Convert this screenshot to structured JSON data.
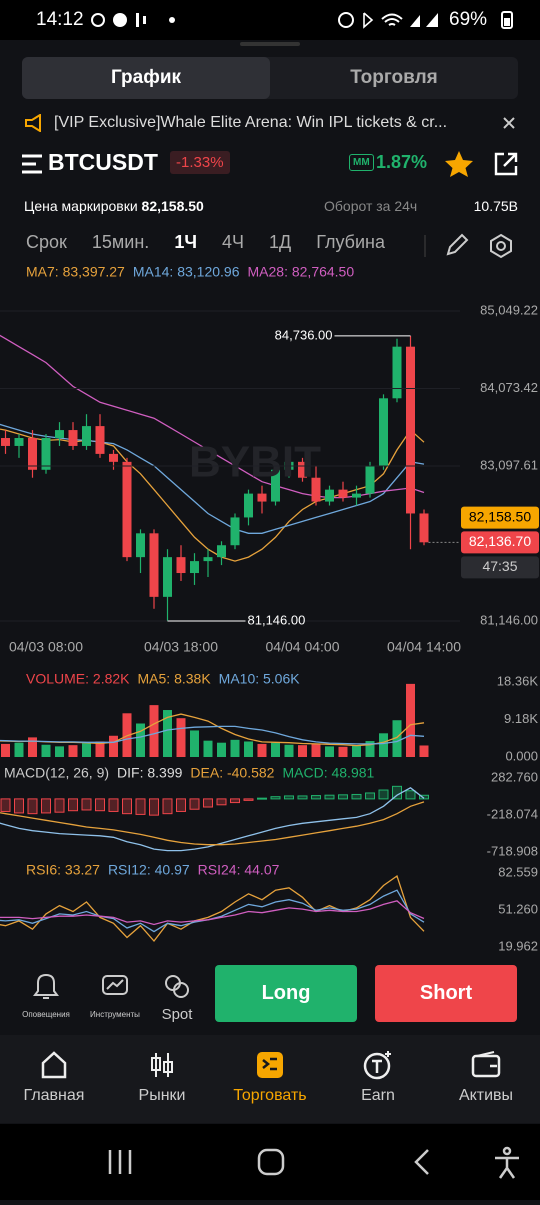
{
  "status_bar": {
    "time": "14:12",
    "battery": "69%"
  },
  "tabs": [
    "График",
    "Торговля"
  ],
  "active_tab": 0,
  "banner": "[VIP Exclusive]Whale Elite Arena: Win IPL tickets & cr...",
  "ticker": {
    "symbol": "BTCUSDT",
    "change": "-1.33%",
    "mm_badge": "MM",
    "mm_value": "1.87%",
    "mark_price_label": "Цена маркировки",
    "mark_price": "82,158.50",
    "turnover_label": "Оборот за 24ч",
    "turnover": "10.75B"
  },
  "intervals": [
    "Срок",
    "15мин.",
    "1Ч",
    "4Ч",
    "1Д",
    "Глубина"
  ],
  "active_interval": 2,
  "chart_data": [
    {
      "type": "candlestick",
      "watermark": "BYBIT",
      "grid": true,
      "ylim": [
        81146,
        85049.22
      ],
      "yticks": [
        {
          "value": 85049.22,
          "label": "85,049.22"
        },
        {
          "value": 84073.42,
          "label": "84,073.42"
        },
        {
          "value": 83097.61,
          "label": "83,097.61"
        },
        {
          "value": 81146,
          "label": "81,146.00"
        }
      ],
      "categories": [
        null,
        null,
        null,
        null,
        null,
        "04/03 08:00",
        null,
        null,
        null,
        null,
        null,
        null,
        null,
        null,
        null,
        "04/03 18:00",
        null,
        null,
        null,
        null,
        null,
        null,
        null,
        null,
        "04/04 04:00",
        null,
        null,
        null,
        null,
        null,
        null,
        null,
        null,
        "04/04 14:00"
      ],
      "open": [
        83600,
        83750,
        83450,
        83350,
        83450,
        83050,
        83450,
        83550,
        83350,
        83600,
        83250,
        83150,
        81950,
        82250,
        81450,
        81950,
        81750,
        81900,
        81950,
        82100,
        82450,
        82750,
        82650,
        83050,
        83150,
        82950,
        82650,
        82800,
        82700,
        82750,
        83100,
        83950,
        84600,
        82500
      ],
      "high": [
        83850,
        83850,
        83550,
        83500,
        83550,
        83500,
        83650,
        83650,
        83750,
        83750,
        83300,
        83200,
        82300,
        82300,
        82050,
        82100,
        82000,
        82050,
        82150,
        82500,
        82800,
        82850,
        83100,
        83250,
        83200,
        83100,
        82850,
        82900,
        82850,
        83150,
        84000,
        84700,
        84736,
        82550
      ],
      "low": [
        83450,
        83400,
        83250,
        83200,
        82950,
        83000,
        83350,
        83300,
        83300,
        83200,
        83050,
        81900,
        81750,
        81300,
        81146,
        81650,
        81600,
        81700,
        81850,
        82050,
        82350,
        82500,
        82600,
        82950,
        82900,
        82600,
        82600,
        82650,
        82600,
        82700,
        83050,
        83900,
        82050,
        82100
      ],
      "close": [
        83750,
        83450,
        83350,
        83450,
        83050,
        83450,
        83550,
        83350,
        83600,
        83250,
        83150,
        81950,
        82250,
        81450,
        81950,
        81750,
        81900,
        81950,
        82100,
        82450,
        82750,
        82650,
        83050,
        83150,
        82950,
        82650,
        82800,
        82700,
        82750,
        83100,
        83950,
        84600,
        82500,
        82136.7
      ],
      "up_color": "#20b26c",
      "down_color": "#ef454a",
      "series": [
        {
          "name": "MA7: 83,397.27",
          "color": "#e6a23c",
          "values": [
            83600,
            83580,
            83550,
            83500,
            83450,
            83420,
            83430,
            83400,
            83420,
            83400,
            83350,
            83150,
            83000,
            82800,
            82600,
            82400,
            82200,
            82050,
            81950,
            81900,
            81950,
            82050,
            82200,
            82400,
            82550,
            82650,
            82700,
            82750,
            82800,
            82850,
            83000,
            83300,
            83550,
            83397.27
          ]
        },
        {
          "name": "MA14: 83,120.96",
          "color": "#6fa8dc",
          "values": [
            83700,
            83650,
            83600,
            83550,
            83500,
            83470,
            83450,
            83430,
            83420,
            83400,
            83380,
            83300,
            83200,
            83100,
            82950,
            82800,
            82650,
            82500,
            82400,
            82300,
            82250,
            82250,
            82300,
            82350,
            82400,
            82450,
            82500,
            82550,
            82600,
            82650,
            82750,
            82950,
            83150,
            83120.96
          ]
        },
        {
          "name": "MA28: 82,764.50",
          "color": "#d05ec0",
          "values": [
            84900,
            84800,
            84700,
            84600,
            84500,
            84400,
            84250,
            84100,
            84000,
            83900,
            83850,
            83800,
            83750,
            83700,
            83600,
            83500,
            83400,
            83300,
            83200,
            83100,
            83000,
            82900,
            82850,
            82800,
            82750,
            82720,
            82700,
            82700,
            82720,
            82750,
            82780,
            82800,
            82820,
            82764.5
          ]
        }
      ],
      "annotations": [
        {
          "value": 84736,
          "label": "84,736.00"
        },
        {
          "value": 81146,
          "label": "81,146.00"
        }
      ],
      "price_tags": [
        {
          "value": 82158.5,
          "label": "82,158.50",
          "color": "#f7a600"
        },
        {
          "value": 82136.7,
          "label": "82,136.70",
          "color": "#ef454a"
        }
      ],
      "countdown": "47:35"
    },
    {
      "type": "bar",
      "ylim": [
        0,
        18.36
      ],
      "yticks": [
        {
          "value": 0,
          "label": "0.000"
        },
        {
          "value": 9.18,
          "label": "9.18K"
        },
        {
          "value": 18.36,
          "label": "18.36K"
        }
      ],
      "series": [
        {
          "name": "VOLUME: 2.82K",
          "color": "#ef454a",
          "values": [
            4.5,
            3.8,
            3.2,
            3.5,
            4.8,
            3.0,
            2.6,
            2.9,
            3.4,
            3.8,
            5.2,
            10.7,
            8.2,
            12.7,
            11.5,
            9.5,
            6.5,
            4.0,
            3.5,
            4.2,
            3.8,
            3.2,
            3.5,
            3.0,
            2.9,
            3.3,
            2.6,
            2.5,
            2.8,
            3.9,
            5.8,
            9.0,
            17.9,
            2.82
          ]
        },
        {
          "name": "MA5: 8.38K",
          "color": "#e6a23c",
          "values": [
            4,
            4,
            3.9,
            3.8,
            3.9,
            3.7,
            3.6,
            3.6,
            3.5,
            3.3,
            3.6,
            5.2,
            6.3,
            8.1,
            9.7,
            10.5,
            9.7,
            8.8,
            7.0,
            5.5,
            4.4,
            3.7,
            3.6,
            3.5,
            3.3,
            3.2,
            3.1,
            3.0,
            2.8,
            3.0,
            3.6,
            4.8,
            7.9,
            8.38
          ]
        },
        {
          "name": "MA10: 5.06K",
          "color": "#6fa8dc",
          "values": [
            4.2,
            4.1,
            4.0,
            3.9,
            3.9,
            3.8,
            3.7,
            3.7,
            3.6,
            3.6,
            3.6,
            4.4,
            4.9,
            5.7,
            6.6,
            7.0,
            7.3,
            7.4,
            7.5,
            7.5,
            7.0,
            6.6,
            5.9,
            5.0,
            4.2,
            3.7,
            3.4,
            3.3,
            3.2,
            3.2,
            3.3,
            3.8,
            5.3,
            5.06
          ]
        }
      ]
    },
    {
      "type": "macd",
      "title": "MACD(12, 26, 9)",
      "ylim": [
        -718.908,
        282.76
      ],
      "yticks": [
        {
          "value": 282.76,
          "label": "282.760"
        },
        {
          "value": -218.074,
          "label": "-218.074"
        },
        {
          "value": -718.908,
          "label": "-718.908"
        }
      ],
      "up_color": "#20b26c",
      "down_color": "#ef454a",
      "series": [
        {
          "name": "DIF: 8.399",
          "color": "#8fc1ea",
          "values": [
            -250,
            -300,
            -350,
            -400,
            -430,
            -450,
            -470,
            -480,
            -490,
            -500,
            -520,
            -580,
            -620,
            -680,
            -700,
            -700,
            -680,
            -650,
            -600,
            -550,
            -500,
            -450,
            -400,
            -360,
            -330,
            -310,
            -290,
            -270,
            -250,
            -200,
            -100,
            50,
            150,
            8.399
          ]
        },
        {
          "name": "DEA: -40.582",
          "color": "#e6a23c",
          "values": [
            -150,
            -170,
            -200,
            -230,
            -260,
            -290,
            -320,
            -350,
            -380,
            -400,
            -420,
            -450,
            -480,
            -520,
            -560,
            -590,
            -610,
            -620,
            -620,
            -610,
            -590,
            -570,
            -550,
            -520,
            -490,
            -460,
            -430,
            -400,
            -370,
            -330,
            -280,
            -200,
            -100,
            -40.582
          ]
        },
        {
          "name": "MACD: 48.981",
          "color": "#20b26c",
          "values": [
            -120,
            -150,
            -170,
            -190,
            -200,
            -190,
            -180,
            -160,
            -150,
            -160,
            -170,
            -200,
            -210,
            -220,
            -200,
            -170,
            -140,
            -110,
            -80,
            -50,
            -20,
            10,
            30,
            40,
            40,
            45,
            50,
            55,
            60,
            80,
            120,
            170,
            110,
            48.981
          ]
        }
      ]
    },
    {
      "type": "line",
      "ylim": [
        19.962,
        82.559
      ],
      "yticks": [
        {
          "value": 82.559,
          "label": "82.559"
        },
        {
          "value": 51.26,
          "label": "51.260"
        },
        {
          "value": 19.962,
          "label": "19.962"
        }
      ],
      "series": [
        {
          "name": "RSI6: 33.27",
          "color": "#e6a23c",
          "values": [
            45,
            40,
            38,
            42,
            35,
            48,
            55,
            50,
            58,
            45,
            40,
            28,
            38,
            25,
            40,
            35,
            42,
            45,
            50,
            58,
            65,
            60,
            68,
            70,
            62,
            50,
            55,
            50,
            53,
            60,
            72,
            80,
            45,
            33.27
          ]
        },
        {
          "name": "RSI12: 40.97",
          "color": "#6fa8dc",
          "values": [
            45,
            43,
            42,
            43,
            40,
            44,
            48,
            47,
            50,
            46,
            44,
            36,
            40,
            33,
            40,
            38,
            41,
            43,
            46,
            51,
            56,
            54,
            58,
            60,
            57,
            51,
            53,
            51,
            52,
            56,
            63,
            68,
            48,
            40.97
          ]
        },
        {
          "name": "RSI24: 44.07",
          "color": "#d05ec0",
          "values": [
            46,
            45,
            45,
            45,
            44,
            45,
            46,
            46,
            47,
            46,
            45,
            41,
            42,
            39,
            42,
            41,
            42,
            43,
            45,
            47,
            50,
            49,
            51,
            53,
            52,
            50,
            51,
            50,
            50,
            52,
            56,
            59,
            49,
            44.07
          ]
        }
      ]
    }
  ],
  "tools": [
    "Оповещения",
    "Инструменты",
    "Spot"
  ],
  "actions": [
    "Long",
    "Short"
  ],
  "nav": [
    "Главная",
    "Рынки",
    "Торговать",
    "Earn",
    "Активы"
  ],
  "active_nav": 2
}
